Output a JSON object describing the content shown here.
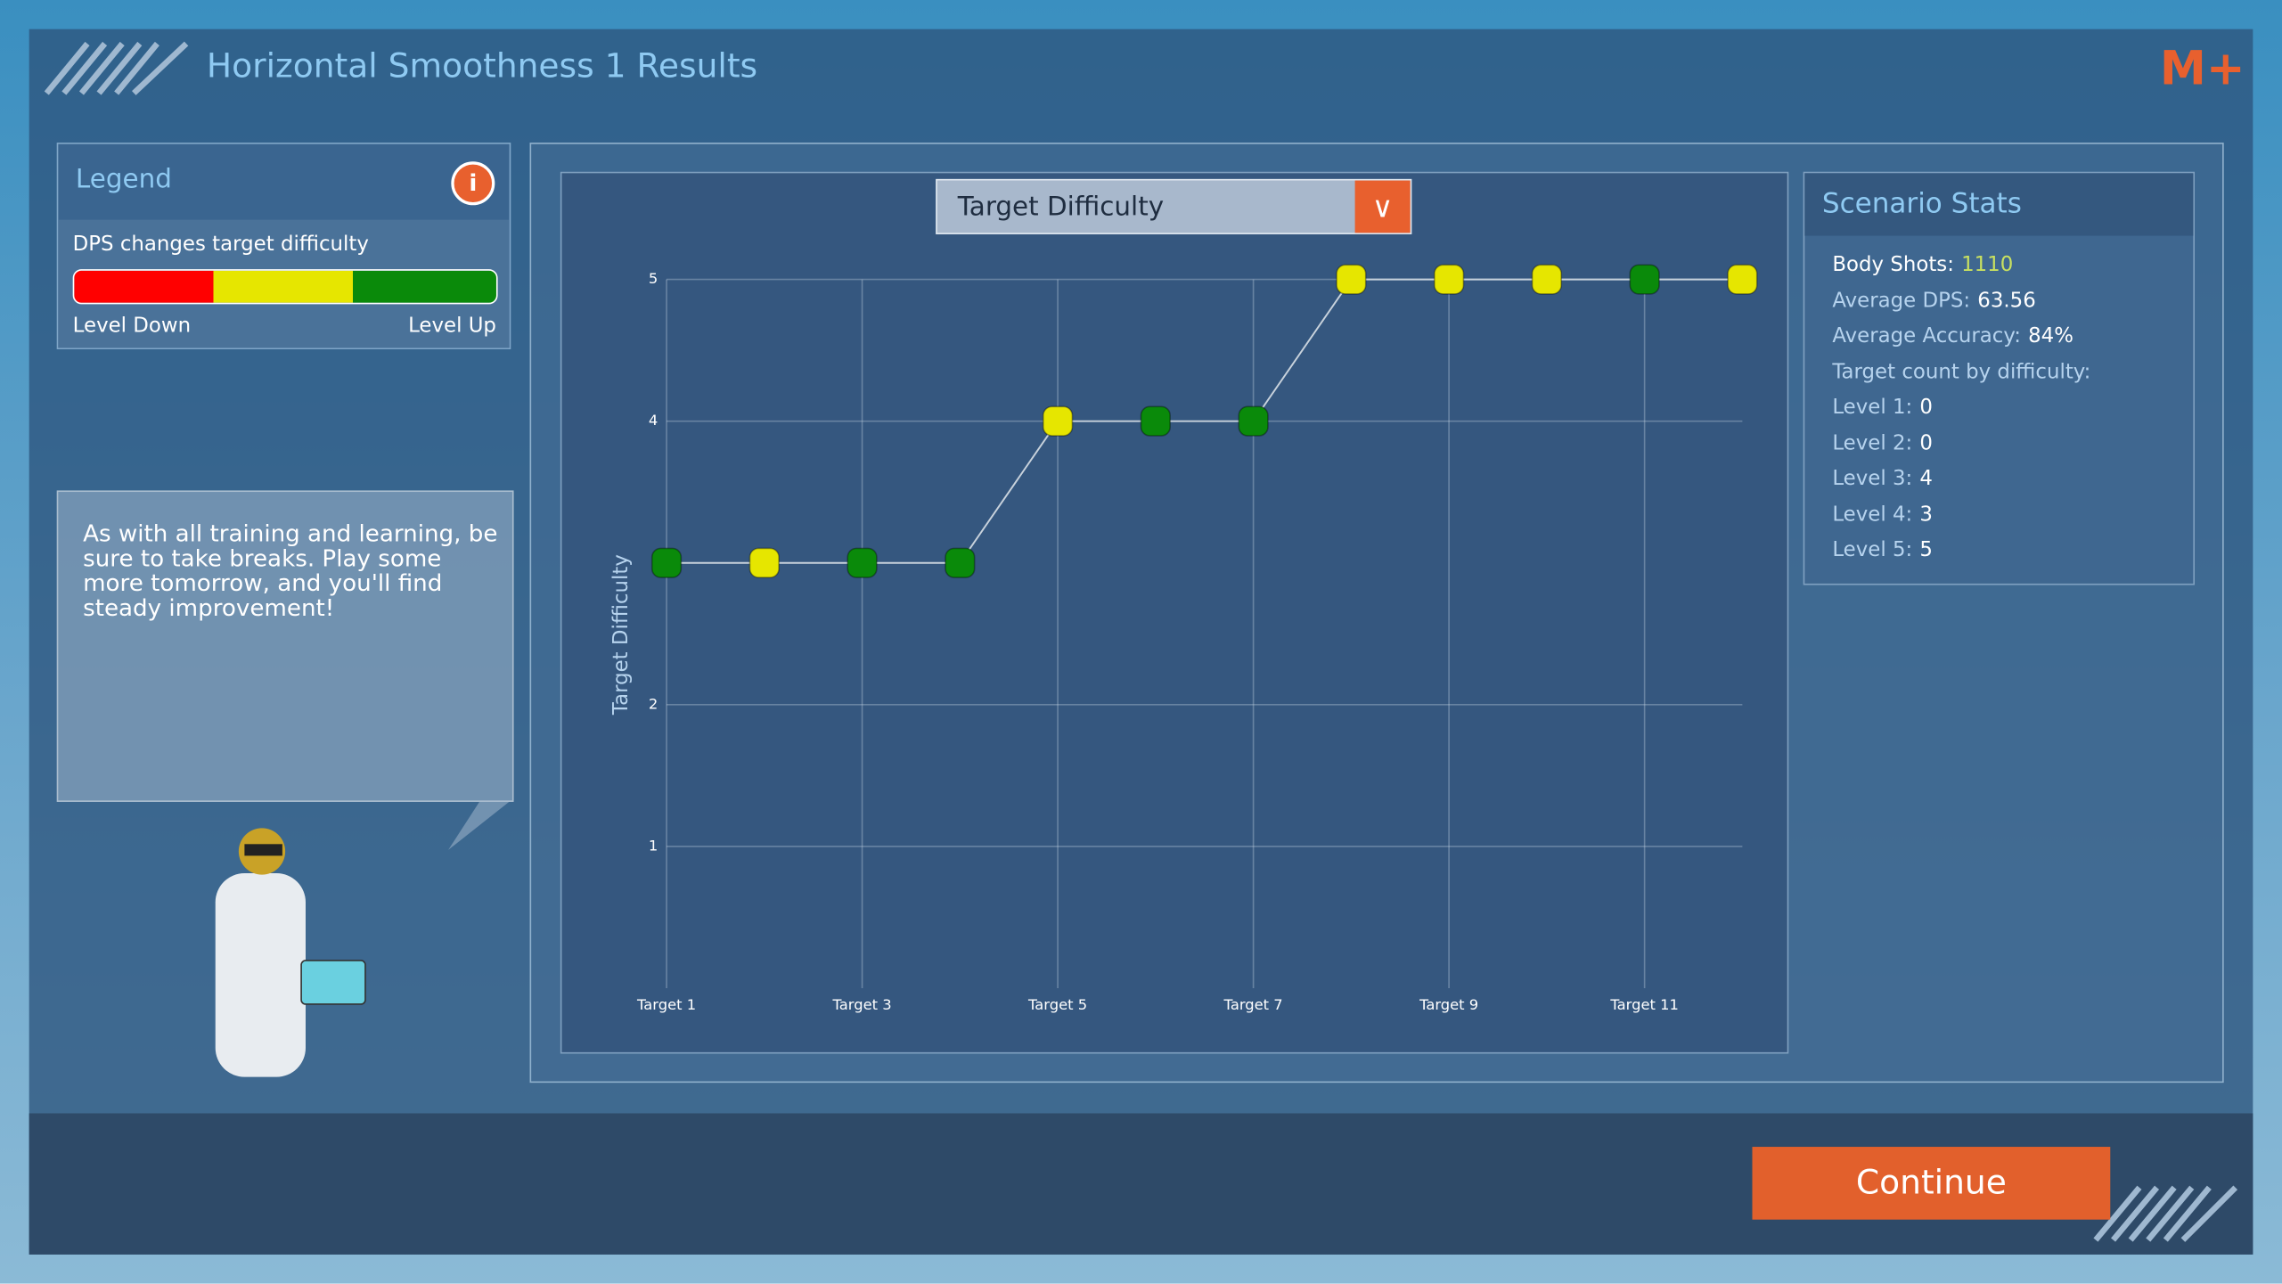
{
  "header": {
    "title": "Horizontal Smoothness 1 Results"
  },
  "legend": {
    "title": "Legend",
    "subtitle": "DPS changes target difficulty",
    "low_label": "Level Down",
    "high_label": "Level Up"
  },
  "tip": {
    "text": "As with all training and learning, be sure to take breaks. Play some more tomorrow, and you'll find steady improvement!"
  },
  "chart_data": {
    "type": "line",
    "title": "Target Difficulty",
    "ylabel": "Target Difficulty",
    "categories": [
      "Target 1",
      null,
      "Target 3",
      null,
      "Target 5",
      null,
      "Target 7",
      null,
      "Target 9",
      null,
      "Target 11",
      null
    ],
    "values": [
      3,
      3,
      3,
      3,
      4,
      4,
      4,
      5,
      5,
      5,
      5,
      5
    ],
    "point_colors": [
      "#0a8a0a",
      "#e6e600",
      "#0a8a0a",
      "#0a8a0a",
      "#e6e600",
      "#0a8a0a",
      "#0a8a0a",
      "#e6e600",
      "#e6e600",
      "#e6e600",
      "#0a8a0a",
      "#e6e600"
    ],
    "line_color": "#c8d2dc",
    "ylim": [
      0,
      5
    ],
    "yticks": [
      1,
      2,
      4,
      5
    ],
    "grid": true
  },
  "stats": {
    "title": "Scenario Stats",
    "items": [
      {
        "label": "Body Shots:",
        "value": "1110"
      },
      {
        "label": "Average DPS:",
        "value": "63.56"
      },
      {
        "label": "Average Accuracy:",
        "value": "84%"
      },
      {
        "label": "Target count by difficulty:"
      },
      {
        "label": "Level 1:",
        "value": "0"
      },
      {
        "label": "Level 2:",
        "value": "0"
      },
      {
        "label": "Level 3:",
        "value": "4"
      },
      {
        "label": "Level 4:",
        "value": "3"
      },
      {
        "label": "Level 5:",
        "value": "5"
      }
    ]
  },
  "button": {
    "label": "Continue"
  }
}
